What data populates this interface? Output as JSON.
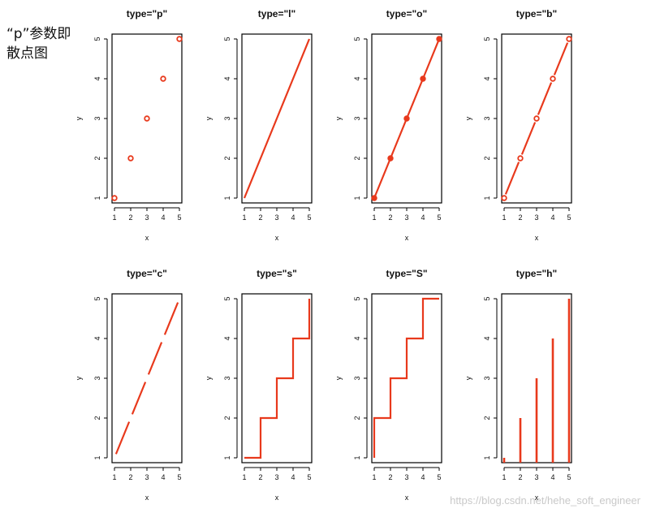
{
  "note": {
    "text": "“p”参数即散点图"
  },
  "watermark": {
    "text": "https://blog.csdn.net/hehe_soft_engineer"
  },
  "colors": {
    "series": "#e8391c",
    "frame": "#000000"
  },
  "chart_data": [
    {
      "type": "scatter",
      "title": "type=\"p\"",
      "plot_type": "p",
      "xlabel": "x",
      "ylabel": "y",
      "x": [
        1,
        2,
        3,
        4,
        5
      ],
      "y": [
        1,
        2,
        3,
        4,
        5
      ],
      "xlim": [
        1,
        5
      ],
      "ylim": [
        1,
        5
      ],
      "xticks": [
        1,
        2,
        3,
        4,
        5
      ],
      "yticks": [
        1,
        2,
        3,
        4,
        5
      ]
    },
    {
      "type": "line",
      "title": "type=\"l\"",
      "plot_type": "l",
      "xlabel": "x",
      "ylabel": "y",
      "x": [
        1,
        2,
        3,
        4,
        5
      ],
      "y": [
        1,
        2,
        3,
        4,
        5
      ],
      "xlim": [
        1,
        5
      ],
      "ylim": [
        1,
        5
      ],
      "xticks": [
        1,
        2,
        3,
        4,
        5
      ],
      "yticks": [
        1,
        2,
        3,
        4,
        5
      ]
    },
    {
      "type": "line",
      "title": "type=\"o\"",
      "plot_type": "o",
      "xlabel": "x",
      "ylabel": "y",
      "x": [
        1,
        2,
        3,
        4,
        5
      ],
      "y": [
        1,
        2,
        3,
        4,
        5
      ],
      "xlim": [
        1,
        5
      ],
      "ylim": [
        1,
        5
      ],
      "xticks": [
        1,
        2,
        3,
        4,
        5
      ],
      "yticks": [
        1,
        2,
        3,
        4,
        5
      ]
    },
    {
      "type": "line",
      "title": "type=\"b\"",
      "plot_type": "b",
      "xlabel": "x",
      "ylabel": "y",
      "x": [
        1,
        2,
        3,
        4,
        5
      ],
      "y": [
        1,
        2,
        3,
        4,
        5
      ],
      "xlim": [
        1,
        5
      ],
      "ylim": [
        1,
        5
      ],
      "xticks": [
        1,
        2,
        3,
        4,
        5
      ],
      "yticks": [
        1,
        2,
        3,
        4,
        5
      ]
    },
    {
      "type": "line",
      "title": "type=\"c\"",
      "plot_type": "c",
      "xlabel": "x",
      "ylabel": "y",
      "x": [
        1,
        2,
        3,
        4,
        5
      ],
      "y": [
        1,
        2,
        3,
        4,
        5
      ],
      "xlim": [
        1,
        5
      ],
      "ylim": [
        1,
        5
      ],
      "xticks": [
        1,
        2,
        3,
        4,
        5
      ],
      "yticks": [
        1,
        2,
        3,
        4,
        5
      ]
    },
    {
      "type": "line",
      "title": "type=\"s\"",
      "plot_type": "s",
      "xlabel": "x",
      "ylabel": "y",
      "x": [
        1,
        2,
        3,
        4,
        5
      ],
      "y": [
        1,
        2,
        3,
        4,
        5
      ],
      "xlim": [
        1,
        5
      ],
      "ylim": [
        1,
        5
      ],
      "xticks": [
        1,
        2,
        3,
        4,
        5
      ],
      "yticks": [
        1,
        2,
        3,
        4,
        5
      ]
    },
    {
      "type": "line",
      "title": "type=\"S\"",
      "plot_type": "S",
      "xlabel": "x",
      "ylabel": "y",
      "x": [
        1,
        2,
        3,
        4,
        5
      ],
      "y": [
        1,
        2,
        3,
        4,
        5
      ],
      "xlim": [
        1,
        5
      ],
      "ylim": [
        1,
        5
      ],
      "xticks": [
        1,
        2,
        3,
        4,
        5
      ],
      "yticks": [
        1,
        2,
        3,
        4,
        5
      ]
    },
    {
      "type": "bar",
      "title": "type=\"h\"",
      "plot_type": "h",
      "xlabel": "x",
      "ylabel": "y",
      "x": [
        1,
        2,
        3,
        4,
        5
      ],
      "y": [
        1,
        2,
        3,
        4,
        5
      ],
      "xlim": [
        1,
        5
      ],
      "ylim": [
        1,
        5
      ],
      "xticks": [
        1,
        2,
        3,
        4,
        5
      ],
      "yticks": [
        1,
        2,
        3,
        4,
        5
      ]
    }
  ]
}
